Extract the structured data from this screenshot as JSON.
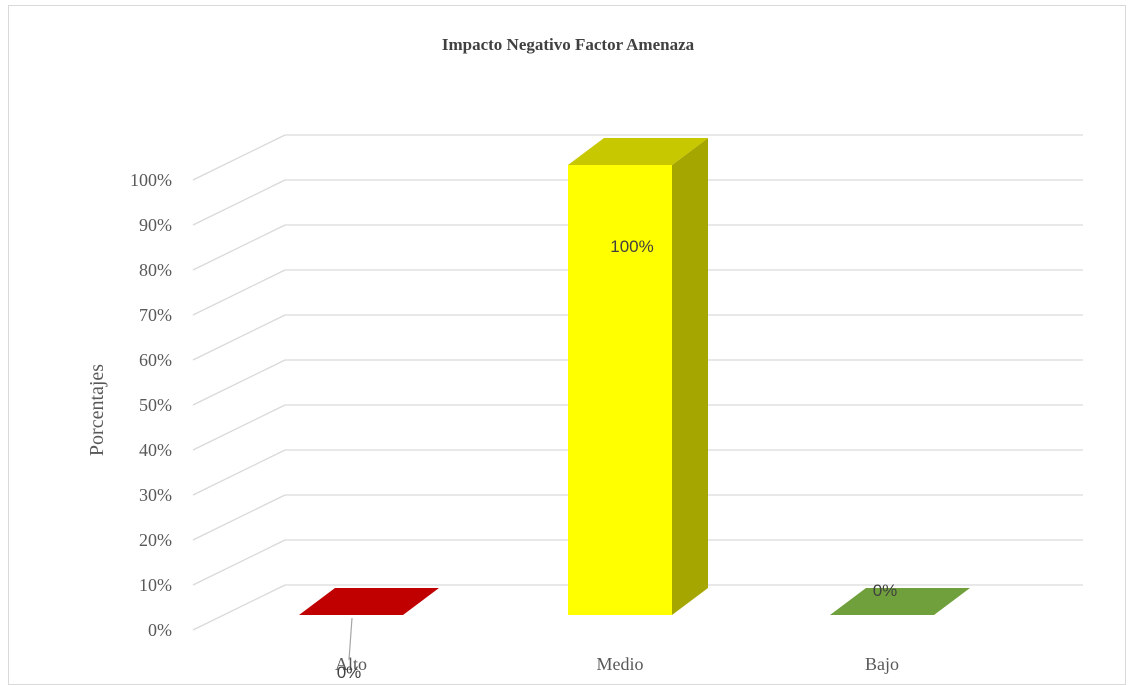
{
  "chart_data": {
    "type": "bar",
    "title": "Impacto Negativo Factor Amenaza",
    "ylabel": "Porcentajes",
    "xlabel": "",
    "categories": [
      "Alto",
      "Medio",
      "Bajo"
    ],
    "values": [
      0,
      100,
      0
    ],
    "data_labels": [
      "0%",
      "100%",
      "0%"
    ],
    "yticks": [
      "0%",
      "10%",
      "20%",
      "30%",
      "40%",
      "50%",
      "60%",
      "70%",
      "80%",
      "90%",
      "100%"
    ],
    "ylim": [
      0,
      100
    ],
    "grid": true,
    "style": "3d-column",
    "colors": [
      "#c00000",
      "#ffff00",
      "#70a03c"
    ],
    "side_colors": [
      "#8c0000",
      "#a6a600",
      "#4e7a28"
    ],
    "top_colors": [
      "#c00000",
      "#c8c800",
      "#70a03c"
    ]
  }
}
